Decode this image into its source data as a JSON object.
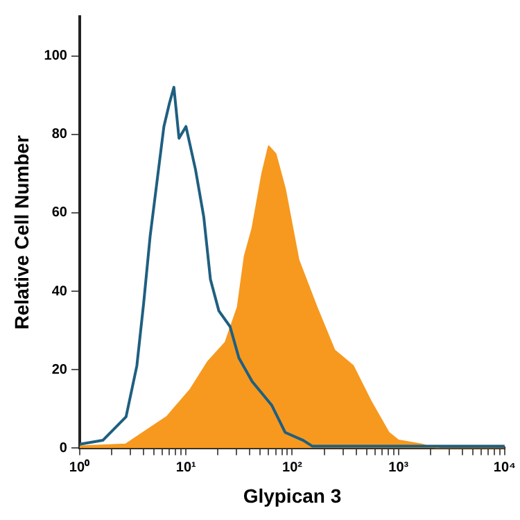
{
  "chart_data": {
    "type": "area",
    "xlabel": "Glypican 3",
    "ylabel": "Relative Cell Number",
    "log": "x",
    "xlim": [
      1,
      10000
    ],
    "ylim": [
      0,
      110
    ],
    "xticks": [
      {
        "value": 1,
        "label": "10⁰"
      },
      {
        "value": 2,
        "label": null
      },
      {
        "value": 3,
        "label": null
      },
      {
        "value": 4,
        "label": null
      },
      {
        "value": 5,
        "label": null
      },
      {
        "value": 6,
        "label": null
      },
      {
        "value": 7,
        "label": null
      },
      {
        "value": 8,
        "label": null
      },
      {
        "value": 9,
        "label": null
      },
      {
        "value": 10,
        "label": "10¹"
      },
      {
        "value": 20,
        "label": null
      },
      {
        "value": 30,
        "label": null
      },
      {
        "value": 40,
        "label": null
      },
      {
        "value": 50,
        "label": null
      },
      {
        "value": 60,
        "label": null
      },
      {
        "value": 70,
        "label": null
      },
      {
        "value": 80,
        "label": null
      },
      {
        "value": 90,
        "label": null
      },
      {
        "value": 100,
        "label": "10²"
      },
      {
        "value": 200,
        "label": null
      },
      {
        "value": 300,
        "label": null
      },
      {
        "value": 400,
        "label": null
      },
      {
        "value": 500,
        "label": null
      },
      {
        "value": 600,
        "label": null
      },
      {
        "value": 700,
        "label": null
      },
      {
        "value": 800,
        "label": null
      },
      {
        "value": 900,
        "label": null
      },
      {
        "value": 1000,
        "label": "10³"
      },
      {
        "value": 2000,
        "label": null
      },
      {
        "value": 3000,
        "label": null
      },
      {
        "value": 4000,
        "label": null
      },
      {
        "value": 5000,
        "label": null
      },
      {
        "value": 6000,
        "label": null
      },
      {
        "value": 7000,
        "label": null
      },
      {
        "value": 8000,
        "label": null
      },
      {
        "value": 9000,
        "label": null
      },
      {
        "value": 10000,
        "label": "10⁴"
      }
    ],
    "yticks": [
      0,
      20,
      40,
      60,
      80,
      100
    ],
    "grid": false,
    "legend": false,
    "series": [
      {
        "type": "area",
        "color": "#f7991f",
        "x": [
          1,
          2.7,
          4.5,
          6.6,
          11,
          16,
          23.5,
          30.6,
          35.6,
          42,
          52,
          60,
          70,
          86,
          115,
          170,
          250,
          375,
          550,
          810,
          1000,
          1650,
          2000,
          2500,
          10000
        ],
        "values": [
          0.5,
          1,
          5,
          8,
          15,
          22,
          27,
          36,
          49,
          56,
          70,
          77,
          75,
          66,
          48,
          36,
          25,
          21,
          12,
          4,
          2,
          1,
          0.3,
          0,
          0
        ]
      },
      {
        "type": "line",
        "color": "#1f5f80",
        "x": [
          1,
          1.65,
          2.73,
          3.45,
          4,
          4.6,
          6.2,
          7,
          7.7,
          8.6,
          10,
          12.3,
          14.7,
          17,
          20.4,
          26,
          31.5,
          42,
          64,
          86,
          127,
          155,
          10000
        ],
        "values": [
          1,
          2,
          8,
          21,
          37,
          54,
          82,
          88,
          92,
          79,
          82,
          71,
          59,
          43,
          35,
          31,
          23,
          17,
          11,
          4,
          2,
          0.5,
          0.5
        ]
      }
    ]
  }
}
